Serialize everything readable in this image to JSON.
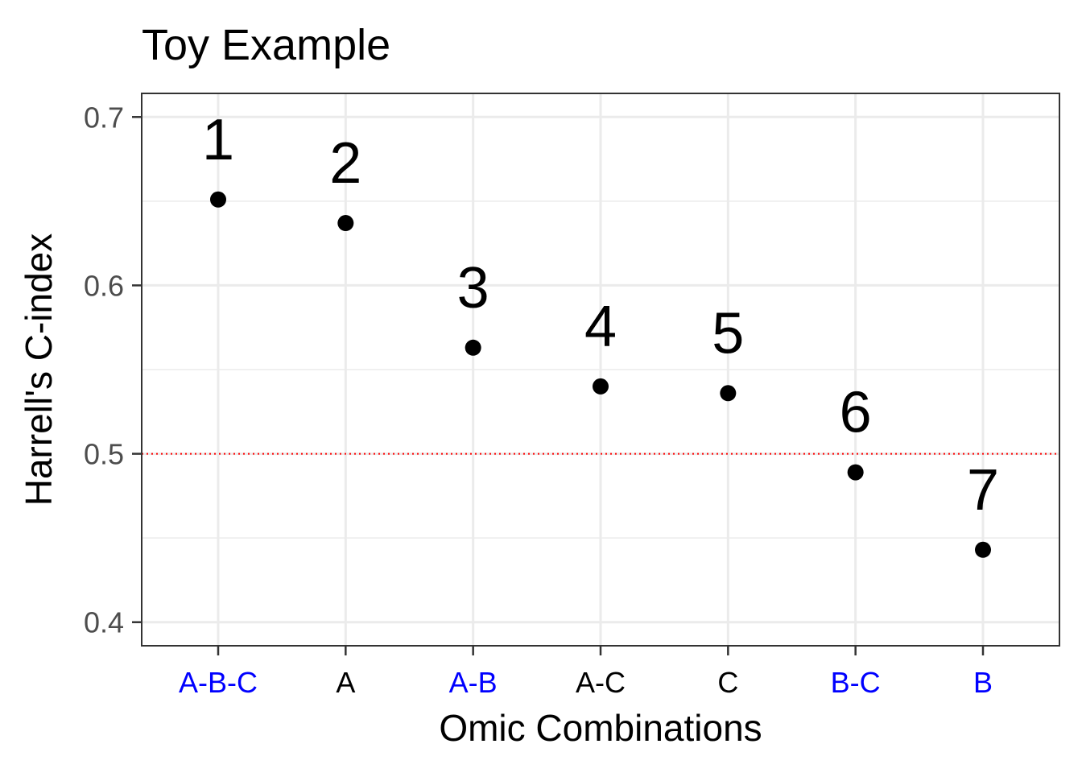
{
  "chart_data": {
    "type": "scatter",
    "title": "Toy Example",
    "xlabel": "Omic Combinations",
    "ylabel": "Harrell's C-index",
    "categories": [
      "A-B-C",
      "A",
      "A-B",
      "A-C",
      "C",
      "B-C",
      "B"
    ],
    "category_label_colors": [
      "#0000ff",
      "#000000",
      "#0000ff",
      "#000000",
      "#000000",
      "#0000ff",
      "#0000ff"
    ],
    "values": [
      0.651,
      0.637,
      0.563,
      0.54,
      0.536,
      0.489,
      0.443
    ],
    "point_labels": [
      "1",
      "2",
      "3",
      "4",
      "5",
      "6",
      "7"
    ],
    "ylim": [
      0.386,
      0.714
    ],
    "yticks": [
      0.4,
      0.5,
      0.6,
      0.7
    ],
    "ytick_labels": [
      "0.4",
      "0.5",
      "0.6",
      "0.7"
    ],
    "reference_line": {
      "y": 0.5,
      "color": "#ff0000",
      "style": "dotted"
    },
    "grid": true,
    "colors": {
      "point": "#000000",
      "grid": "#ebebeb",
      "panel_border": "#333333"
    }
  }
}
